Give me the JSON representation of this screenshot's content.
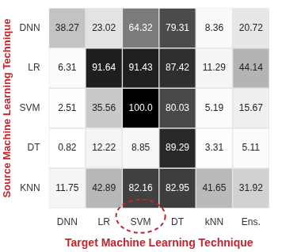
{
  "chart_data": {
    "type": "heatmap",
    "x_label": "Target Machine Learning Technique",
    "y_label": "Source Machine Learning Technique",
    "x_categories": [
      "DNN",
      "LR",
      "SVM",
      "DT",
      "kNN",
      "Ens."
    ],
    "y_categories": [
      "DNN",
      "LR",
      "SVM",
      "DT",
      "KNN"
    ],
    "cells": [
      [
        38.27,
        23.02,
        64.32,
        79.31,
        8.36,
        20.72
      ],
      [
        6.31,
        91.64,
        91.43,
        87.42,
        11.29,
        44.14
      ],
      [
        2.51,
        35.56,
        100.0,
        80.03,
        5.19,
        15.67
      ],
      [
        0.82,
        12.22,
        8.85,
        89.29,
        3.31,
        5.11
      ],
      [
        11.75,
        42.89,
        82.16,
        82.95,
        41.65,
        31.92
      ]
    ],
    "value_labels": [
      [
        "38.27",
        "23.02",
        "64.32",
        "79.31",
        "8.36",
        "20.72"
      ],
      [
        "6.31",
        "91.64",
        "91.43",
        "87.42",
        "11.29",
        "44.14"
      ],
      [
        "2.51",
        "35.56",
        "100.0",
        "80.03",
        "5.19",
        "15.67"
      ],
      [
        "0.82",
        "12.22",
        "8.85",
        "89.29",
        "3.31",
        "5.11"
      ],
      [
        "11.75",
        "42.89",
        "82.16",
        "82.95",
        "41.65",
        "31.92"
      ]
    ],
    "data_labels": true
  }
}
